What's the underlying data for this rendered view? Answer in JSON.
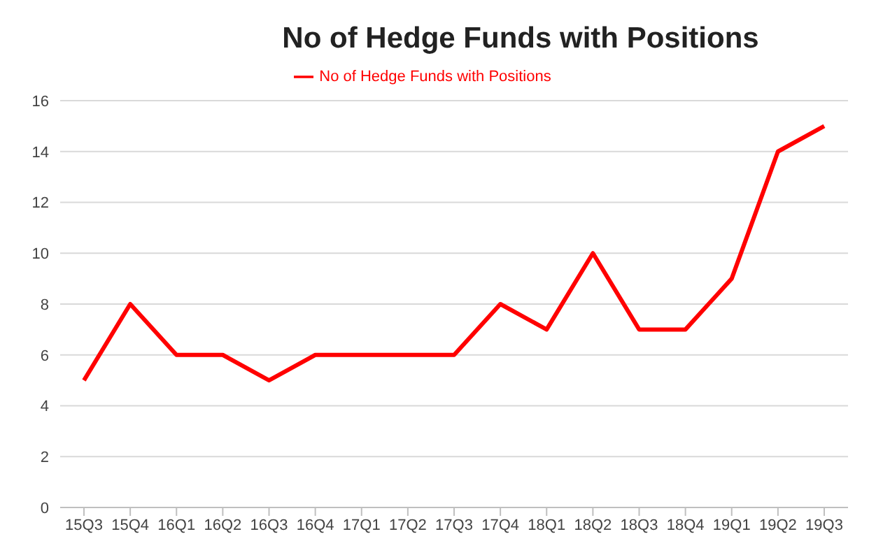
{
  "chart_data": {
    "type": "line",
    "title": "No of Hedge Funds with Positions",
    "categories": [
      "15Q3",
      "15Q4",
      "16Q1",
      "16Q2",
      "16Q3",
      "16Q4",
      "17Q1",
      "17Q2",
      "17Q3",
      "17Q4",
      "18Q1",
      "18Q2",
      "18Q3",
      "18Q4",
      "19Q1",
      "19Q2",
      "19Q3"
    ],
    "series": [
      {
        "name": "No of Hedge Funds with Positions",
        "color": "#ff0000",
        "values": [
          5,
          8,
          6,
          6,
          5,
          6,
          6,
          6,
          6,
          8,
          7,
          10,
          7,
          7,
          9,
          14,
          15
        ]
      }
    ],
    "ylim": [
      0,
      16
    ],
    "yticks": [
      0,
      2,
      4,
      6,
      8,
      10,
      12,
      14,
      16
    ],
    "grid": "y",
    "legend": "top",
    "marker": "none",
    "line_style": "solid"
  }
}
